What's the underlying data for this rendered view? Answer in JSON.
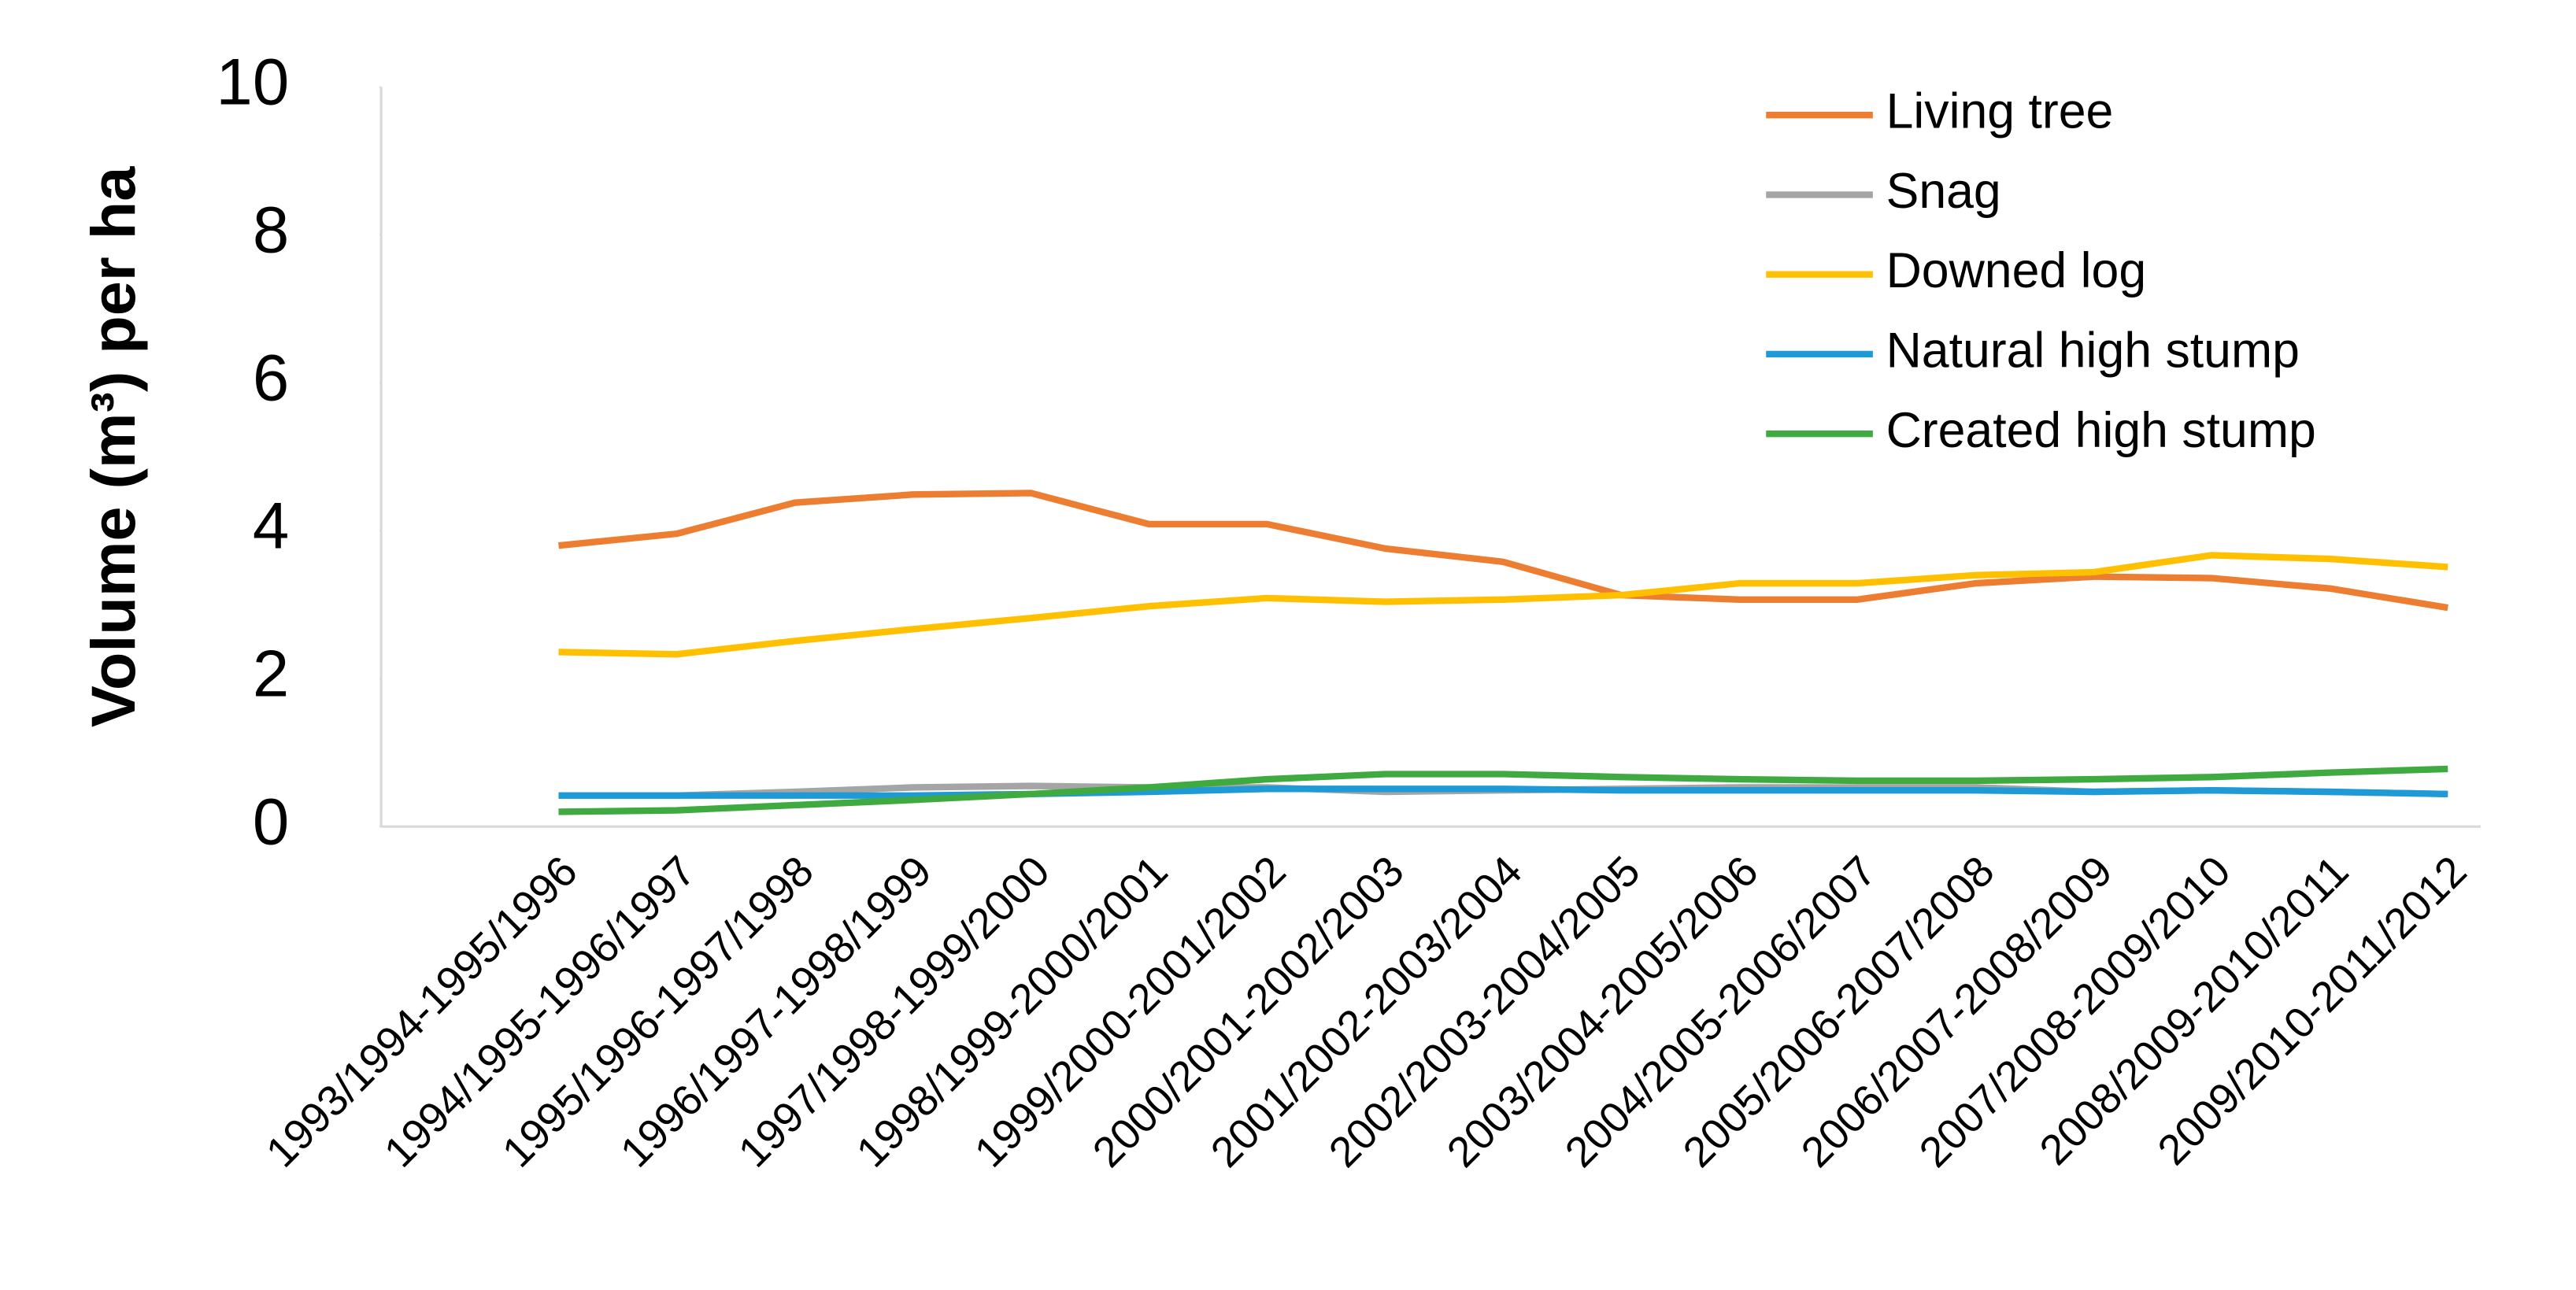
{
  "chart_data": {
    "type": "line",
    "y_label": "Volume (m³) per ha",
    "categories": [
      "1993/1994-1995/1996",
      "1994/1995-1996/1997",
      "1995/1996-1997/1998",
      "1996/1997-1998/1999",
      "1997/1998-1999/2000",
      "1998/1999-2000/2001",
      "1999/2000-2001/2002",
      "2000/2001-2002/2003",
      "2001/2002-2003/2004",
      "2002/2003-2004/2005",
      "2003/2004-2005/2006",
      "2004/2005-2006/2007",
      "2005/2006-2007/2008",
      "2006/2007-2008/2009",
      "2007/2008-2009/2010",
      "2008/2009-2010/2011",
      "2009/2010-2011/2012"
    ],
    "series": [
      {
        "name": "Living tree",
        "color": "#ED7D31",
        "values": [
          3.8,
          3.96,
          4.38,
          4.49,
          4.51,
          4.09,
          4.09,
          3.76,
          3.58,
          3.13,
          3.07,
          3.07,
          3.29,
          3.38,
          3.36,
          3.22,
          2.96
        ]
      },
      {
        "name": "Snag",
        "color": "#A5A5A5",
        "values": [
          0.42,
          0.42,
          0.47,
          0.53,
          0.55,
          0.53,
          0.53,
          0.47,
          0.49,
          0.51,
          0.53,
          0.53,
          0.53,
          0.47,
          0.49,
          0.47,
          0.44
        ]
      },
      {
        "name": "Downed log",
        "color": "#FFC000",
        "values": [
          2.36,
          2.33,
          2.51,
          2.67,
          2.82,
          2.98,
          3.09,
          3.04,
          3.07,
          3.13,
          3.29,
          3.29,
          3.4,
          3.44,
          3.67,
          3.62,
          3.51
        ]
      },
      {
        "name": "Natural high stump",
        "color": "#1E9BD7",
        "values": [
          0.42,
          0.42,
          0.42,
          0.42,
          0.44,
          0.47,
          0.51,
          0.51,
          0.51,
          0.49,
          0.49,
          0.49,
          0.49,
          0.47,
          0.49,
          0.47,
          0.44
        ]
      },
      {
        "name": "Created high stump",
        "color": "#3FAA3F",
        "values": [
          0.2,
          0.22,
          0.29,
          0.36,
          0.44,
          0.53,
          0.64,
          0.71,
          0.71,
          0.67,
          0.64,
          0.62,
          0.62,
          0.64,
          0.67,
          0.73,
          0.78
        ]
      }
    ],
    "ylim": [
      0,
      10
    ],
    "yticks": [
      0,
      2,
      4,
      6,
      8,
      10
    ],
    "grid": false,
    "legend": "top-right"
  }
}
